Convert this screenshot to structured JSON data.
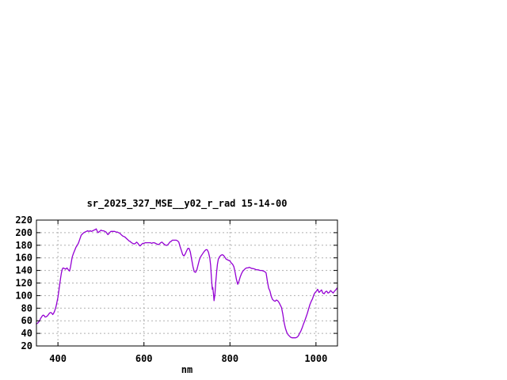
{
  "chart_data": {
    "type": "line",
    "title": "sr_2025_327_MSE__y02_r_rad 15-14-00",
    "xlabel": "nm",
    "ylabel": "",
    "xlim": [
      350,
      1050
    ],
    "ylim": [
      20,
      220
    ],
    "xticks": [
      400,
      600,
      800,
      1000
    ],
    "yticks": [
      20,
      40,
      60,
      80,
      100,
      120,
      140,
      160,
      180,
      200,
      220
    ],
    "grid": true,
    "legend": "none",
    "colors": {
      "line": "#9400D3",
      "grid": "#b0b0b0",
      "border": "#000000",
      "text": "#000000",
      "background": "#ffffff"
    },
    "series": [
      {
        "name": "sr_2025_327_MSE__y02_r_rad",
        "x_unit": "nm",
        "points": [
          [
            350,
            55
          ],
          [
            352,
            56
          ],
          [
            354,
            57
          ],
          [
            356,
            59
          ],
          [
            358,
            61
          ],
          [
            360,
            64
          ],
          [
            362,
            66
          ],
          [
            364,
            68
          ],
          [
            366,
            69
          ],
          [
            368,
            68
          ],
          [
            370,
            66
          ],
          [
            372,
            66
          ],
          [
            374,
            67
          ],
          [
            376,
            68
          ],
          [
            378,
            70
          ],
          [
            380,
            72
          ],
          [
            382,
            73
          ],
          [
            384,
            73
          ],
          [
            386,
            72
          ],
          [
            388,
            70
          ],
          [
            390,
            72
          ],
          [
            392,
            75
          ],
          [
            394,
            79
          ],
          [
            396,
            84
          ],
          [
            398,
            91
          ],
          [
            400,
            97
          ],
          [
            402,
            107
          ],
          [
            404,
            117
          ],
          [
            406,
            127
          ],
          [
            408,
            136
          ],
          [
            410,
            142
          ],
          [
            412,
            144
          ],
          [
            415,
            143
          ],
          [
            418,
            142
          ],
          [
            421,
            144
          ],
          [
            424,
            141
          ],
          [
            427,
            139
          ],
          [
            429,
            145
          ],
          [
            431,
            153
          ],
          [
            433,
            161
          ],
          [
            436,
            167
          ],
          [
            439,
            172
          ],
          [
            442,
            177
          ],
          [
            445,
            180
          ],
          [
            448,
            184
          ],
          [
            451,
            190
          ],
          [
            454,
            196
          ],
          [
            457,
            198
          ],
          [
            460,
            200
          ],
          [
            463,
            201
          ],
          [
            466,
            202
          ],
          [
            469,
            203
          ],
          [
            472,
            202
          ],
          [
            475,
            203
          ],
          [
            478,
            202
          ],
          [
            481,
            203
          ],
          [
            484,
            204
          ],
          [
            487,
            205
          ],
          [
            489,
            206
          ],
          [
            491,
            203
          ],
          [
            493,
            200
          ],
          [
            495,
            201
          ],
          [
            497,
            202
          ],
          [
            500,
            204
          ],
          [
            503,
            203
          ],
          [
            506,
            203
          ],
          [
            509,
            202
          ],
          [
            512,
            201
          ],
          [
            514,
            199
          ],
          [
            516,
            197
          ],
          [
            518,
            198
          ],
          [
            520,
            200
          ],
          [
            523,
            202
          ],
          [
            526,
            202
          ],
          [
            529,
            202
          ],
          [
            532,
            202
          ],
          [
            535,
            201
          ],
          [
            538,
            201
          ],
          [
            541,
            200
          ],
          [
            544,
            199
          ],
          [
            547,
            197
          ],
          [
            550,
            195
          ],
          [
            553,
            194
          ],
          [
            556,
            193
          ],
          [
            559,
            191
          ],
          [
            562,
            189
          ],
          [
            565,
            187
          ],
          [
            568,
            186
          ],
          [
            571,
            184
          ],
          [
            574,
            183
          ],
          [
            577,
            182
          ],
          [
            580,
            183
          ],
          [
            583,
            185
          ],
          [
            586,
            183
          ],
          [
            589,
            180
          ],
          [
            591,
            179
          ],
          [
            594,
            181
          ],
          [
            597,
            183
          ],
          [
            600,
            183
          ],
          [
            603,
            184
          ],
          [
            606,
            184
          ],
          [
            609,
            184
          ],
          [
            612,
            184
          ],
          [
            615,
            184
          ],
          [
            618,
            183
          ],
          [
            621,
            184
          ],
          [
            624,
            184
          ],
          [
            627,
            183
          ],
          [
            630,
            182
          ],
          [
            633,
            181
          ],
          [
            636,
            182
          ],
          [
            639,
            184
          ],
          [
            642,
            185
          ],
          [
            645,
            183
          ],
          [
            648,
            181
          ],
          [
            651,
            180
          ],
          [
            654,
            180
          ],
          [
            657,
            182
          ],
          [
            660,
            185
          ],
          [
            663,
            186
          ],
          [
            666,
            188
          ],
          [
            669,
            188
          ],
          [
            672,
            188
          ],
          [
            675,
            188
          ],
          [
            678,
            187
          ],
          [
            681,
            185
          ],
          [
            684,
            178
          ],
          [
            687,
            172
          ],
          [
            690,
            165
          ],
          [
            693,
            163
          ],
          [
            696,
            166
          ],
          [
            699,
            171
          ],
          [
            702,
            175
          ],
          [
            705,
            175
          ],
          [
            708,
            169
          ],
          [
            711,
            157
          ],
          [
            714,
            146
          ],
          [
            717,
            138
          ],
          [
            720,
            137
          ],
          [
            723,
            141
          ],
          [
            726,
            149
          ],
          [
            729,
            157
          ],
          [
            732,
            162
          ],
          [
            735,
            165
          ],
          [
            738,
            168
          ],
          [
            741,
            171
          ],
          [
            744,
            173
          ],
          [
            747,
            173
          ],
          [
            750,
            169
          ],
          [
            753,
            160
          ],
          [
            755,
            148
          ],
          [
            757,
            128
          ],
          [
            759,
            110
          ],
          [
            760,
            113
          ],
          [
            762,
            100
          ],
          [
            763,
            92
          ],
          [
            765,
            102
          ],
          [
            767,
            122
          ],
          [
            769,
            138
          ],
          [
            771,
            150
          ],
          [
            773,
            158
          ],
          [
            776,
            162
          ],
          [
            779,
            164
          ],
          [
            782,
            165
          ],
          [
            785,
            164
          ],
          [
            788,
            161
          ],
          [
            791,
            158
          ],
          [
            794,
            157
          ],
          [
            797,
            156
          ],
          [
            800,
            155
          ],
          [
            803,
            152
          ],
          [
            806,
            150
          ],
          [
            809,
            146
          ],
          [
            812,
            137
          ],
          [
            815,
            126
          ],
          [
            818,
            118
          ],
          [
            821,
            123
          ],
          [
            824,
            130
          ],
          [
            827,
            135
          ],
          [
            830,
            139
          ],
          [
            833,
            141
          ],
          [
            836,
            143
          ],
          [
            839,
            144
          ],
          [
            842,
            144
          ],
          [
            845,
            145
          ],
          [
            848,
            144
          ],
          [
            851,
            143
          ],
          [
            854,
            143
          ],
          [
            858,
            142
          ],
          [
            862,
            141
          ],
          [
            866,
            141
          ],
          [
            870,
            140
          ],
          [
            874,
            140
          ],
          [
            878,
            139
          ],
          [
            881,
            138
          ],
          [
            884,
            136
          ],
          [
            887,
            123
          ],
          [
            890,
            112
          ],
          [
            893,
            107
          ],
          [
            896,
            99
          ],
          [
            899,
            94
          ],
          [
            902,
            92
          ],
          [
            905,
            91
          ],
          [
            908,
            93
          ],
          [
            911,
            92
          ],
          [
            914,
            89
          ],
          [
            917,
            85
          ],
          [
            920,
            81
          ],
          [
            923,
            70
          ],
          [
            926,
            57
          ],
          [
            929,
            48
          ],
          [
            932,
            42
          ],
          [
            935,
            38
          ],
          [
            938,
            36
          ],
          [
            941,
            34
          ],
          [
            944,
            33
          ],
          [
            947,
            33
          ],
          [
            950,
            33
          ],
          [
            953,
            33
          ],
          [
            956,
            34
          ],
          [
            959,
            36
          ],
          [
            962,
            40
          ],
          [
            965,
            44
          ],
          [
            968,
            49
          ],
          [
            971,
            55
          ],
          [
            974,
            60
          ],
          [
            977,
            66
          ],
          [
            980,
            72
          ],
          [
            983,
            79
          ],
          [
            986,
            86
          ],
          [
            989,
            91
          ],
          [
            992,
            95
          ],
          [
            995,
            101
          ],
          [
            998,
            105
          ],
          [
            1001,
            107
          ],
          [
            1004,
            110
          ],
          [
            1007,
            105
          ],
          [
            1010,
            107
          ],
          [
            1013,
            109
          ],
          [
            1016,
            104
          ],
          [
            1019,
            103
          ],
          [
            1022,
            106
          ],
          [
            1025,
            107
          ],
          [
            1028,
            104
          ],
          [
            1031,
            105
          ],
          [
            1034,
            108
          ],
          [
            1037,
            106
          ],
          [
            1040,
            104
          ],
          [
            1043,
            107
          ],
          [
            1046,
            109
          ],
          [
            1049,
            112
          ]
        ]
      }
    ]
  }
}
